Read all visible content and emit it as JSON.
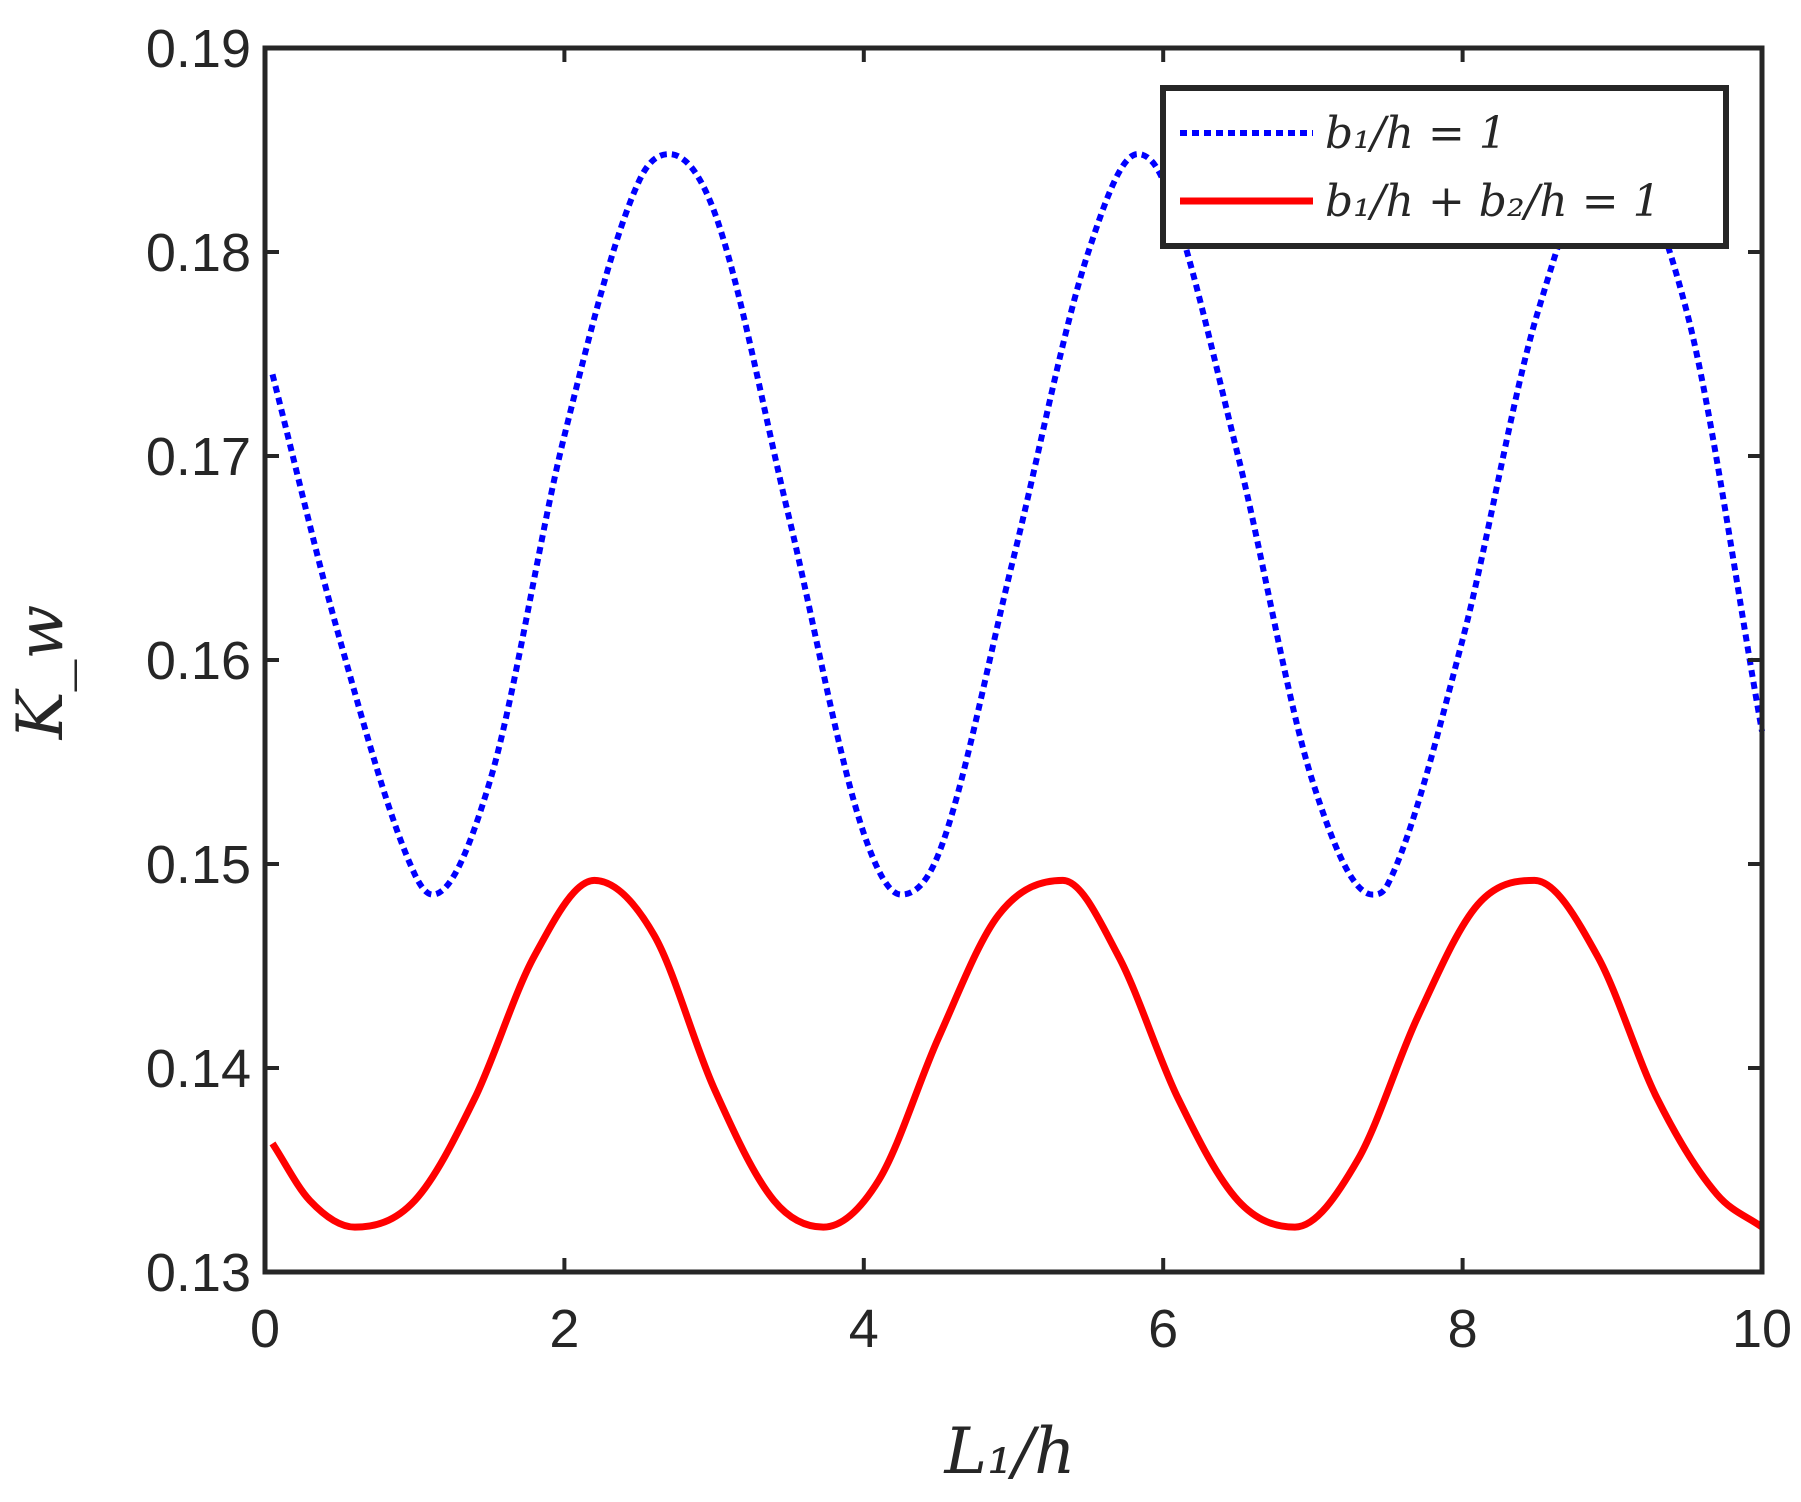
{
  "chart_data": {
    "type": "line",
    "title": "",
    "xlabel": "L₁/h",
    "ylabel": "K_w",
    "xlim": [
      0,
      10
    ],
    "ylim": [
      0.13,
      0.19
    ],
    "xticks": [
      0,
      2,
      4,
      6,
      8,
      10
    ],
    "xtick_labels": [
      "0",
      "2",
      "4",
      "6",
      "8",
      "10"
    ],
    "yticks": [
      0.13,
      0.14,
      0.15,
      0.16,
      0.17,
      0.18,
      0.19
    ],
    "ytick_labels": [
      "0.13",
      "0.14",
      "0.15",
      "0.16",
      "0.17",
      "0.18",
      "0.19"
    ],
    "grid": false,
    "legend_position": "top-right",
    "series": [
      {
        "name": "b₁/h = 1",
        "color": "#0000ff",
        "style": "dotted",
        "x": [
          0.05,
          0.5,
          1.0,
          1.12,
          1.5,
          2.0,
          2.5,
          2.7,
          3.0,
          3.5,
          4.0,
          4.25,
          4.5,
          5.0,
          5.5,
          5.83,
          6.0,
          6.5,
          7.0,
          7.4,
          7.5,
          8.0,
          8.5,
          8.97,
          9.0,
          9.5,
          10.0
        ],
        "values": [
          0.174,
          0.161,
          0.1495,
          0.1485,
          0.154,
          0.171,
          0.1835,
          0.1848,
          0.182,
          0.167,
          0.1515,
          0.1485,
          0.1505,
          0.165,
          0.18,
          0.1848,
          0.1835,
          0.17,
          0.154,
          0.1485,
          0.149,
          0.161,
          0.177,
          0.1848,
          0.1848,
          0.177,
          0.1565
        ]
      },
      {
        "name": "b₁/h + b₂/h = 1",
        "color": "#ff0000",
        "style": "solid",
        "x": [
          0.05,
          0.3,
          0.6,
          1.0,
          1.4,
          1.8,
          2.2,
          2.6,
          3.0,
          3.4,
          3.73,
          4.1,
          4.5,
          4.9,
          5.33,
          5.7,
          6.1,
          6.5,
          6.88,
          7.3,
          7.7,
          8.1,
          8.48,
          8.9,
          9.3,
          9.7,
          10.0
        ],
        "values": [
          0.1363,
          0.1335,
          0.1322,
          0.1335,
          0.1385,
          0.1455,
          0.1492,
          0.1465,
          0.139,
          0.1335,
          0.1322,
          0.1345,
          0.1415,
          0.1475,
          0.1492,
          0.1455,
          0.1385,
          0.1335,
          0.1322,
          0.1355,
          0.1425,
          0.148,
          0.1492,
          0.1455,
          0.1385,
          0.1338,
          0.1322
        ]
      }
    ]
  }
}
